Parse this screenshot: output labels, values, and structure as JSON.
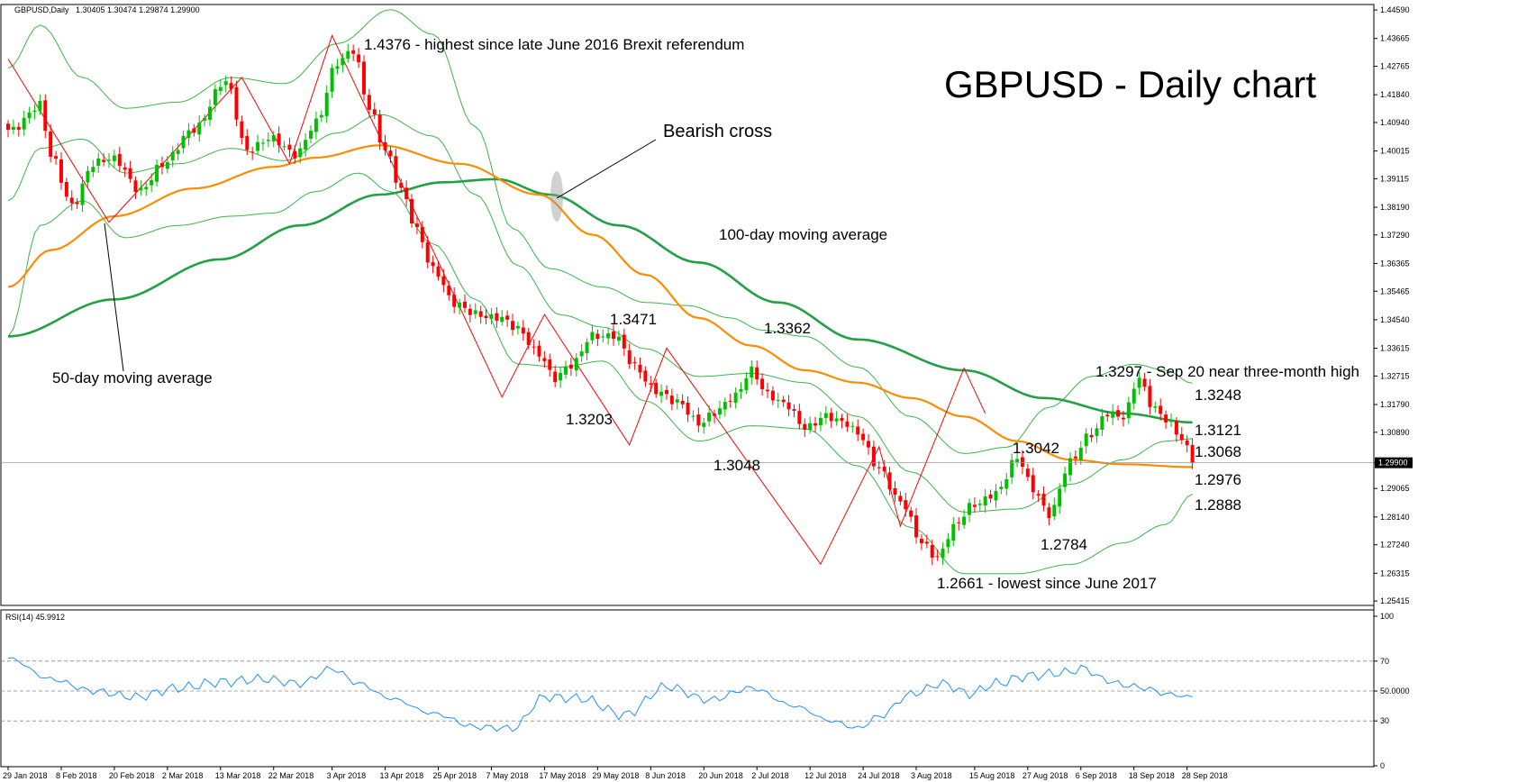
{
  "header": {
    "symbol": "GBPUSD,Daily",
    "ohlc": "1.30405 1.30474 1.29874 1.29900",
    "rsi_label": "RSI(14) 45.9912"
  },
  "title": "GBPUSD - Daily chart",
  "colors": {
    "bull": "#00c000",
    "bear": "#ff0000",
    "ma50": "#ff8c00",
    "ma100": "#22a045",
    "bands": "#3cb44b",
    "rsi": "#1e90ff",
    "trend": "#ff0000"
  },
  "annotations": {
    "high_2018": "1.4376 - highest since late June 2016 Brexit referendum",
    "bearish_cross": "Bearish cross",
    "ma100_label": "100-day moving average",
    "ma50_label": "50-day moving average",
    "low_13471": "1.3471",
    "low_13203": "1.3203",
    "low_13362": "1.3362",
    "low_13048": "1.3048",
    "low_13042": "1.3042",
    "low_12784": "1.2784",
    "low_12661": "1.2661 - lowest since June 2017",
    "high_13297": "1.3297 - Sep 20 near three-month high",
    "upper_band": "1.3248",
    "ma100_value": "1.3121",
    "middle_band": "1.3068",
    "ma50_value": "1.2976",
    "lower_band": "1.2888"
  },
  "chart_data": [
    {
      "type": "candlestick",
      "title": "GBPUSD - Daily chart",
      "y_ticks": [
        "1.44590",
        "1.43665",
        "1.42765",
        "1.41840",
        "1.40940",
        "1.40015",
        "1.39115",
        "1.38190",
        "1.37290",
        "1.36365",
        "1.35465",
        "1.34540",
        "1.33615",
        "1.32715",
        "1.31790",
        "1.30890",
        "1.29900",
        "1.29065",
        "1.28140",
        "1.27240",
        "1.26315",
        "1.25415"
      ],
      "ylim": [
        1.2533,
        1.4468
      ],
      "current_price": "1.29900",
      "x_ticks": [
        "29 Jan 2018",
        "8 Feb 2018",
        "20 Feb 2018",
        "2 Mar 2018",
        "13 Mar 2018",
        "22 Mar 2018",
        "3 Apr 2018",
        "13 Apr 2018",
        "25 Apr 2018",
        "7 May 2018",
        "17 May 2018",
        "29 May 2018",
        "8 Jun 2018",
        "20 Jun 2018",
        "2 Jul 2018",
        "12 Jul 2018",
        "24 Jul 2018",
        "3 Aug 2018",
        "15 Aug 2018",
        "27 Aug 2018",
        "6 Sep 2018",
        "18 Sep 2018",
        "28 Sep 2018"
      ],
      "close_anchors": [
        [
          0,
          1.407
        ],
        [
          6,
          1.415
        ],
        [
          8,
          1.398
        ],
        [
          12,
          1.383
        ],
        [
          16,
          1.396
        ],
        [
          20,
          1.397
        ],
        [
          25,
          1.388
        ],
        [
          29,
          1.395
        ],
        [
          35,
          1.408
        ],
        [
          41,
          1.422
        ],
        [
          45,
          1.401
        ],
        [
          49,
          1.404
        ],
        [
          54,
          1.399
        ],
        [
          58,
          1.41
        ],
        [
          62,
          1.428
        ],
        [
          65,
          1.433
        ],
        [
          68,
          1.415
        ],
        [
          71,
          1.4
        ],
        [
          74,
          1.387
        ],
        [
          77,
          1.375
        ],
        [
          80,
          1.362
        ],
        [
          84,
          1.35
        ],
        [
          88,
          1.348
        ],
        [
          92,
          1.346
        ],
        [
          96,
          1.342
        ],
        [
          100,
          1.335
        ],
        [
          103,
          1.326
        ],
        [
          106,
          1.33
        ],
        [
          110,
          1.341
        ],
        [
          114,
          1.34
        ],
        [
          118,
          1.33
        ],
        [
          122,
          1.323
        ],
        [
          126,
          1.318
        ],
        [
          130,
          1.312
        ],
        [
          133,
          1.316
        ],
        [
          137,
          1.32
        ],
        [
          140,
          1.329
        ],
        [
          143,
          1.322
        ],
        [
          146,
          1.318
        ],
        [
          150,
          1.31
        ],
        [
          154,
          1.315
        ],
        [
          157,
          1.312
        ],
        [
          160,
          1.308
        ],
        [
          164,
          1.298
        ],
        [
          168,
          1.286
        ],
        [
          172,
          1.273
        ],
        [
          175,
          1.269
        ],
        [
          178,
          1.278
        ],
        [
          182,
          1.285
        ],
        [
          186,
          1.29
        ],
        [
          190,
          1.3
        ],
        [
          193,
          1.29
        ],
        [
          196,
          1.283
        ],
        [
          200,
          1.299
        ],
        [
          204,
          1.308
        ],
        [
          207,
          1.316
        ],
        [
          210,
          1.314
        ],
        [
          213,
          1.326
        ],
        [
          215,
          1.318
        ],
        [
          218,
          1.314
        ],
        [
          221,
          1.307
        ],
        [
          223,
          1.299
        ]
      ],
      "ma50": [
        [
          0,
          1.356
        ],
        [
          8,
          1.368
        ],
        [
          20,
          1.379
        ],
        [
          35,
          1.388
        ],
        [
          50,
          1.395
        ],
        [
          58,
          1.398
        ],
        [
          70,
          1.402
        ],
        [
          85,
          1.396
        ],
        [
          100,
          1.386
        ],
        [
          110,
          1.373
        ],
        [
          120,
          1.36
        ],
        [
          130,
          1.346
        ],
        [
          140,
          1.337
        ],
        [
          150,
          1.329
        ],
        [
          160,
          1.325
        ],
        [
          170,
          1.32
        ],
        [
          180,
          1.314
        ],
        [
          190,
          1.306
        ],
        [
          200,
          1.3
        ],
        [
          210,
          1.2985
        ],
        [
          223,
          1.2976
        ]
      ],
      "ma100": [
        [
          0,
          1.34
        ],
        [
          20,
          1.352
        ],
        [
          40,
          1.365
        ],
        [
          55,
          1.376
        ],
        [
          70,
          1.386
        ],
        [
          82,
          1.39
        ],
        [
          92,
          1.391
        ],
        [
          102,
          1.386
        ],
        [
          115,
          1.376
        ],
        [
          130,
          1.364
        ],
        [
          145,
          1.351
        ],
        [
          160,
          1.339
        ],
        [
          180,
          1.329
        ],
        [
          195,
          1.32
        ],
        [
          210,
          1.315
        ],
        [
          223,
          1.3121
        ]
      ],
      "bb_upper": [
        [
          0,
          1.427
        ],
        [
          6,
          1.441
        ],
        [
          14,
          1.424
        ],
        [
          22,
          1.414
        ],
        [
          32,
          1.416
        ],
        [
          42,
          1.424
        ],
        [
          52,
          1.422
        ],
        [
          62,
          1.435
        ],
        [
          72,
          1.446
        ],
        [
          80,
          1.438
        ],
        [
          88,
          1.408
        ],
        [
          95,
          1.375
        ],
        [
          102,
          1.362
        ],
        [
          112,
          1.356
        ],
        [
          120,
          1.351
        ],
        [
          128,
          1.35
        ],
        [
          136,
          1.346
        ],
        [
          142,
          1.342
        ],
        [
          150,
          1.34
        ],
        [
          160,
          1.33
        ],
        [
          170,
          1.314
        ],
        [
          180,
          1.302
        ],
        [
          188,
          1.304
        ],
        [
          196,
          1.317
        ],
        [
          204,
          1.327
        ],
        [
          212,
          1.331
        ],
        [
          218,
          1.329
        ],
        [
          223,
          1.3248
        ]
      ],
      "bb_lower": [
        [
          0,
          1.34
        ],
        [
          6,
          1.376
        ],
        [
          14,
          1.384
        ],
        [
          22,
          1.372
        ],
        [
          32,
          1.376
        ],
        [
          42,
          1.379
        ],
        [
          50,
          1.38
        ],
        [
          58,
          1.387
        ],
        [
          66,
          1.393
        ],
        [
          72,
          1.387
        ],
        [
          80,
          1.37
        ],
        [
          88,
          1.352
        ],
        [
          96,
          1.331
        ],
        [
          104,
          1.33
        ],
        [
          112,
          1.332
        ],
        [
          120,
          1.319
        ],
        [
          130,
          1.306
        ],
        [
          140,
          1.311
        ],
        [
          150,
          1.31
        ],
        [
          160,
          1.298
        ],
        [
          170,
          1.278
        ],
        [
          180,
          1.263
        ],
        [
          190,
          1.263
        ],
        [
          200,
          1.266
        ],
        [
          210,
          1.273
        ],
        [
          218,
          1.279
        ],
        [
          223,
          1.2888
        ]
      ],
      "bb_middle": [
        [
          0,
          1.384
        ],
        [
          6,
          1.401
        ],
        [
          14,
          1.404
        ],
        [
          22,
          1.393
        ],
        [
          32,
          1.396
        ],
        [
          42,
          1.401
        ],
        [
          52,
          1.397
        ],
        [
          62,
          1.406
        ],
        [
          70,
          1.412
        ],
        [
          80,
          1.405
        ],
        [
          88,
          1.386
        ],
        [
          96,
          1.363
        ],
        [
          104,
          1.347
        ],
        [
          112,
          1.343
        ],
        [
          120,
          1.336
        ],
        [
          130,
          1.327
        ],
        [
          140,
          1.328
        ],
        [
          150,
          1.325
        ],
        [
          160,
          1.314
        ],
        [
          170,
          1.296
        ],
        [
          180,
          1.283
        ],
        [
          190,
          1.284
        ],
        [
          200,
          1.292
        ],
        [
          210,
          1.3
        ],
        [
          218,
          1.306
        ],
        [
          223,
          1.3068
        ]
      ],
      "trendline": [
        [
          0,
          1.43
        ],
        [
          19,
          1.377
        ],
        [
          44,
          1.424
        ],
        [
          53,
          1.396
        ],
        [
          61,
          1.4376
        ],
        [
          93,
          1.3203
        ],
        [
          101,
          1.3471
        ],
        [
          117,
          1.3048
        ],
        [
          124,
          1.3362
        ],
        [
          153,
          1.2661
        ],
        [
          164,
          1.3042
        ],
        [
          168,
          1.2784
        ],
        [
          180,
          1.3297
        ],
        [
          184,
          1.315
        ]
      ]
    },
    {
      "type": "line",
      "title": "RSI(14) 45.9912",
      "y_ticks": [
        "100",
        "70",
        "50.0000",
        "30",
        "0"
      ],
      "ylim": [
        0,
        100
      ],
      "rsi_anchors": [
        [
          0,
          72
        ],
        [
          8,
          58
        ],
        [
          16,
          50
        ],
        [
          24,
          46
        ],
        [
          32,
          52
        ],
        [
          40,
          56
        ],
        [
          48,
          58
        ],
        [
          55,
          55
        ],
        [
          61,
          65
        ],
        [
          66,
          55
        ],
        [
          72,
          45
        ],
        [
          80,
          35
        ],
        [
          88,
          26
        ],
        [
          95,
          25
        ],
        [
          101,
          46
        ],
        [
          108,
          45
        ],
        [
          116,
          34
        ],
        [
          124,
          53
        ],
        [
          132,
          44
        ],
        [
          140,
          52
        ],
        [
          148,
          40
        ],
        [
          155,
          30
        ],
        [
          160,
          25
        ],
        [
          164,
          33
        ],
        [
          170,
          48
        ],
        [
          176,
          55
        ],
        [
          181,
          48
        ],
        [
          186,
          55
        ],
        [
          192,
          60
        ],
        [
          198,
          62
        ],
        [
          203,
          65
        ],
        [
          206,
          58
        ],
        [
          210,
          54
        ],
        [
          214,
          52
        ],
        [
          218,
          48
        ],
        [
          223,
          45.9912
        ]
      ]
    }
  ]
}
